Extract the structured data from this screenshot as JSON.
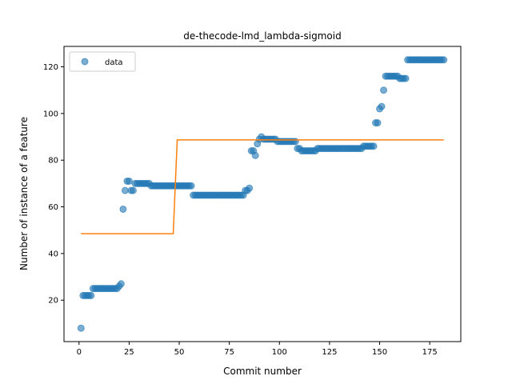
{
  "chart_data": {
    "type": "scatter",
    "title": "de-thecode-lmd_lambda-sigmoid",
    "xlabel": "Commit number",
    "ylabel": "Number of instance of a feature",
    "xlim": [
      -7.5,
      190.5
    ],
    "ylim": [
      2.25,
      128.75
    ],
    "xticks": [
      0,
      25,
      50,
      75,
      100,
      125,
      150,
      175
    ],
    "yticks": [
      20,
      40,
      60,
      80,
      100,
      120
    ],
    "grid": false,
    "legend": {
      "placement": "upper-left",
      "entries": [
        "data"
      ]
    },
    "series": [
      {
        "name": "data",
        "kind": "scatter",
        "color": "#1f77b4",
        "opacity": 0.6,
        "points": [
          [
            1,
            8
          ],
          [
            2,
            22
          ],
          [
            3,
            22
          ],
          [
            4,
            22
          ],
          [
            5,
            22
          ],
          [
            6,
            22
          ],
          [
            7,
            25
          ],
          [
            8,
            25
          ],
          [
            9,
            25
          ],
          [
            10,
            25
          ],
          [
            11,
            25
          ],
          [
            12,
            25
          ],
          [
            13,
            25
          ],
          [
            14,
            25
          ],
          [
            15,
            25
          ],
          [
            16,
            25
          ],
          [
            17,
            25
          ],
          [
            18,
            25
          ],
          [
            19,
            25
          ],
          [
            20,
            26
          ],
          [
            21,
            27
          ],
          [
            22,
            59
          ],
          [
            23,
            67
          ],
          [
            24,
            71
          ],
          [
            25,
            71
          ],
          [
            26,
            67
          ],
          [
            27,
            67
          ],
          [
            28,
            70
          ],
          [
            29,
            70
          ],
          [
            30,
            70
          ],
          [
            31,
            70
          ],
          [
            32,
            70
          ],
          [
            33,
            70
          ],
          [
            34,
            70
          ],
          [
            35,
            70
          ],
          [
            36,
            69
          ],
          [
            37,
            69
          ],
          [
            38,
            69
          ],
          [
            39,
            69
          ],
          [
            40,
            69
          ],
          [
            41,
            69
          ],
          [
            42,
            69
          ],
          [
            43,
            69
          ],
          [
            44,
            69
          ],
          [
            45,
            69
          ],
          [
            46,
            69
          ],
          [
            47,
            69
          ],
          [
            48,
            69
          ],
          [
            49,
            69
          ],
          [
            50,
            69
          ],
          [
            51,
            69
          ],
          [
            52,
            69
          ],
          [
            53,
            69
          ],
          [
            54,
            69
          ],
          [
            55,
            69
          ],
          [
            56,
            69
          ],
          [
            57,
            65
          ],
          [
            58,
            65
          ],
          [
            59,
            65
          ],
          [
            60,
            65
          ],
          [
            61,
            65
          ],
          [
            62,
            65
          ],
          [
            63,
            65
          ],
          [
            64,
            65
          ],
          [
            65,
            65
          ],
          [
            66,
            65
          ],
          [
            67,
            65
          ],
          [
            68,
            65
          ],
          [
            69,
            65
          ],
          [
            70,
            65
          ],
          [
            71,
            65
          ],
          [
            72,
            65
          ],
          [
            73,
            65
          ],
          [
            74,
            65
          ],
          [
            75,
            65
          ],
          [
            76,
            65
          ],
          [
            77,
            65
          ],
          [
            78,
            65
          ],
          [
            79,
            65
          ],
          [
            80,
            65
          ],
          [
            81,
            65
          ],
          [
            82,
            65
          ],
          [
            83,
            67
          ],
          [
            84,
            67
          ],
          [
            85,
            68
          ],
          [
            86,
            84
          ],
          [
            87,
            84
          ],
          [
            88,
            82
          ],
          [
            89,
            87
          ],
          [
            90,
            89
          ],
          [
            91,
            90
          ],
          [
            92,
            89
          ],
          [
            93,
            89
          ],
          [
            94,
            89
          ],
          [
            95,
            89
          ],
          [
            96,
            89
          ],
          [
            97,
            89
          ],
          [
            98,
            89
          ],
          [
            99,
            88
          ],
          [
            100,
            88
          ],
          [
            101,
            88
          ],
          [
            102,
            88
          ],
          [
            103,
            88
          ],
          [
            104,
            88
          ],
          [
            105,
            88
          ],
          [
            106,
            88
          ],
          [
            107,
            88
          ],
          [
            108,
            88
          ],
          [
            109,
            85
          ],
          [
            110,
            85
          ],
          [
            111,
            84
          ],
          [
            112,
            84
          ],
          [
            113,
            84
          ],
          [
            114,
            84
          ],
          [
            115,
            84
          ],
          [
            116,
            84
          ],
          [
            117,
            84
          ],
          [
            118,
            84
          ],
          [
            119,
            85
          ],
          [
            120,
            85
          ],
          [
            121,
            85
          ],
          [
            122,
            85
          ],
          [
            123,
            85
          ],
          [
            124,
            85
          ],
          [
            125,
            85
          ],
          [
            126,
            85
          ],
          [
            127,
            85
          ],
          [
            128,
            85
          ],
          [
            129,
            85
          ],
          [
            130,
            85
          ],
          [
            131,
            85
          ],
          [
            132,
            85
          ],
          [
            133,
            85
          ],
          [
            134,
            85
          ],
          [
            135,
            85
          ],
          [
            136,
            85
          ],
          [
            137,
            85
          ],
          [
            138,
            85
          ],
          [
            139,
            85
          ],
          [
            140,
            85
          ],
          [
            141,
            85
          ],
          [
            142,
            86
          ],
          [
            143,
            86
          ],
          [
            144,
            86
          ],
          [
            145,
            86
          ],
          [
            146,
            86
          ],
          [
            147,
            86
          ],
          [
            148,
            96
          ],
          [
            149,
            96
          ],
          [
            150,
            102
          ],
          [
            151,
            103
          ],
          [
            152,
            110
          ],
          [
            153,
            116
          ],
          [
            154,
            116
          ],
          [
            155,
            116
          ],
          [
            156,
            116
          ],
          [
            157,
            116
          ],
          [
            158,
            116
          ],
          [
            159,
            116
          ],
          [
            160,
            115
          ],
          [
            161,
            115
          ],
          [
            162,
            115
          ],
          [
            163,
            115
          ],
          [
            164,
            123
          ],
          [
            165,
            123
          ],
          [
            166,
            123
          ],
          [
            167,
            123
          ],
          [
            168,
            123
          ],
          [
            169,
            123
          ],
          [
            170,
            123
          ],
          [
            171,
            123
          ],
          [
            172,
            123
          ],
          [
            173,
            123
          ],
          [
            174,
            123
          ],
          [
            175,
            123
          ],
          [
            176,
            123
          ],
          [
            177,
            123
          ],
          [
            178,
            123
          ],
          [
            179,
            123
          ],
          [
            180,
            123
          ],
          [
            181,
            123
          ],
          [
            182,
            123
          ]
        ]
      },
      {
        "name": "",
        "kind": "line",
        "color": "#ff7f0e",
        "points": [
          [
            1,
            48.5
          ],
          [
            47,
            48.5
          ],
          [
            49,
            88.7
          ],
          [
            182,
            88.7
          ]
        ]
      }
    ]
  }
}
